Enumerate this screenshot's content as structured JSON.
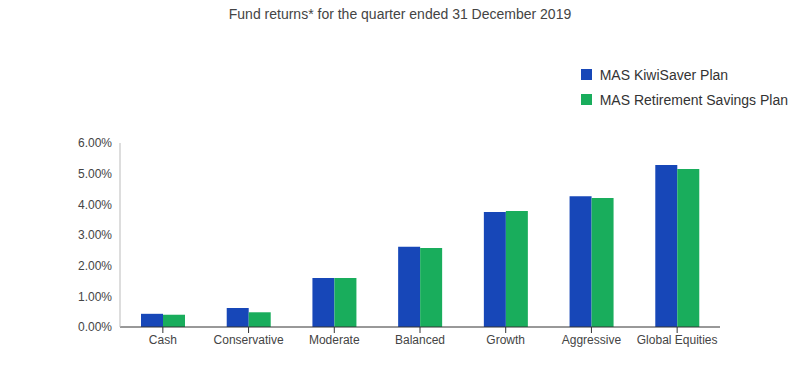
{
  "chart_data": {
    "type": "bar",
    "title": "Fund returns* for the quarter ended 31 December 2019",
    "categories": [
      "Cash",
      "Conservative",
      "Moderate",
      "Balanced",
      "Growth",
      "Aggressive",
      "Global Equities"
    ],
    "series": [
      {
        "name": "MAS KiwiSaver Plan",
        "color": "#1747b8",
        "values": [
          0.43,
          0.62,
          1.6,
          2.62,
          3.75,
          4.26,
          5.28
        ]
      },
      {
        "name": "MAS Retirement Savings Plan",
        "color": "#19ad5c",
        "values": [
          0.4,
          0.48,
          1.6,
          2.58,
          3.78,
          4.21,
          5.15
        ]
      }
    ],
    "ylim": [
      0,
      6
    ],
    "yticks": [
      {
        "value": 0,
        "label": "0.00%"
      },
      {
        "value": 1,
        "label": "1.00%"
      },
      {
        "value": 2,
        "label": "2.00%"
      },
      {
        "value": 3,
        "label": "3.00%"
      },
      {
        "value": 4,
        "label": "4.00%"
      },
      {
        "value": 5,
        "label": "5.00%"
      },
      {
        "value": 6,
        "label": "6.00%"
      }
    ],
    "grid": false,
    "legend": "upper right"
  }
}
